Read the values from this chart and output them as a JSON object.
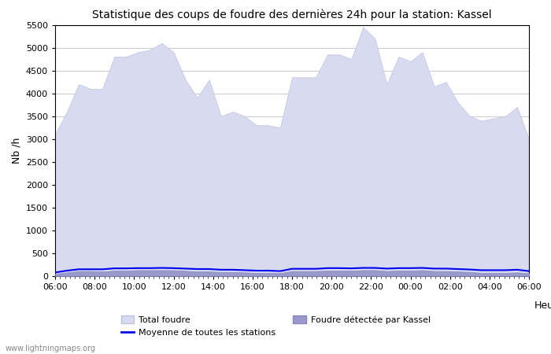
{
  "title": "Statistique des coups de foudre des dernières 24h pour la station: Kassel",
  "xlabel": "Heure",
  "ylabel": "Nb /h",
  "xlim": [
    0,
    24
  ],
  "ylim": [
    0,
    5500
  ],
  "yticks": [
    0,
    500,
    1000,
    1500,
    2000,
    2500,
    3000,
    3500,
    4000,
    4500,
    5000,
    5500
  ],
  "xtick_labels": [
    "06:00",
    "08:00",
    "10:00",
    "12:00",
    "14:00",
    "16:00",
    "18:00",
    "20:00",
    "22:00",
    "00:00",
    "02:00",
    "04:00",
    "06:00"
  ],
  "xtick_positions": [
    0,
    2,
    4,
    6,
    8,
    10,
    12,
    14,
    16,
    18,
    20,
    22,
    24
  ],
  "bg_color": "#ffffff",
  "plot_bg_color": "#ffffff",
  "grid_color": "#cccccc",
  "total_foudre_color": "#d8daef",
  "total_foudre_edge_color": "#c0c3e0",
  "kassel_color": "#9999cc",
  "kassel_edge_color": "#8888bb",
  "moyenne_color": "#0000ee",
  "watermark": "www.lightningmaps.org",
  "total_foudre_values": [
    3100,
    3600,
    4200,
    4100,
    4100,
    4800,
    4800,
    4900,
    4950,
    5100,
    4900,
    4300,
    3900,
    4300,
    3500,
    3600,
    3500,
    3300,
    3300,
    3250,
    4350,
    4350,
    4350,
    4850,
    4850,
    4750,
    5450,
    5200,
    4200,
    4800,
    4700,
    4900,
    4150,
    4250,
    3800,
    3500,
    3400,
    3450,
    3500,
    3700,
    3000
  ],
  "kassel_values": [
    50,
    80,
    110,
    110,
    100,
    120,
    120,
    130,
    130,
    130,
    130,
    115,
    100,
    100,
    90,
    90,
    80,
    70,
    70,
    65,
    110,
    110,
    110,
    120,
    120,
    120,
    130,
    130,
    110,
    120,
    120,
    130,
    110,
    110,
    100,
    90,
    70,
    70,
    70,
    80,
    60
  ],
  "moyenne_values": [
    80,
    120,
    150,
    150,
    150,
    170,
    170,
    175,
    175,
    180,
    175,
    165,
    155,
    155,
    140,
    140,
    130,
    120,
    120,
    110,
    160,
    160,
    160,
    175,
    175,
    170,
    180,
    180,
    165,
    175,
    175,
    180,
    165,
    165,
    155,
    145,
    130,
    130,
    130,
    140,
    110
  ],
  "n_points": 41
}
